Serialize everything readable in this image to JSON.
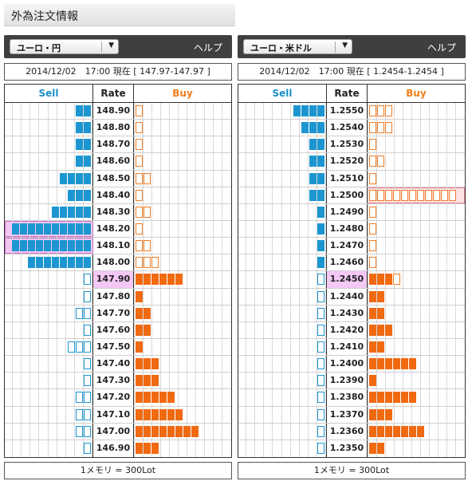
{
  "page_title": "外為注文情報",
  "colors": {
    "sell": "#1c96d1",
    "buy": "#f06a12",
    "current_rate": "#f4c8f5"
  },
  "panels": [
    {
      "pair": "ユーロ・円",
      "help": "ヘルプ",
      "status": "2014/12/02　17:00 現在 [ 147.97-147.97 ]",
      "headers": {
        "sell": "Sell",
        "rate": "Rate",
        "buy": "Buy"
      },
      "footer": "1メモリ = 300Lot",
      "rows": [
        {
          "rate": "148.90",
          "sell": 2,
          "sell_partial": false,
          "buy": 0,
          "buy_partial": true
        },
        {
          "rate": "148.80",
          "sell": 2,
          "sell_partial": false,
          "buy": 0,
          "buy_partial": true
        },
        {
          "rate": "148.70",
          "sell": 2,
          "sell_partial": false,
          "buy": 0,
          "buy_partial": true
        },
        {
          "rate": "148.60",
          "sell": 2,
          "sell_partial": false,
          "buy": 0,
          "buy_partial": true
        },
        {
          "rate": "148.50",
          "sell": 4,
          "sell_partial": false,
          "buy": 0,
          "buy_partial": true,
          "buy_outline": 2
        },
        {
          "rate": "148.40",
          "sell": 3,
          "sell_partial": false,
          "buy": 0,
          "buy_partial": true
        },
        {
          "rate": "148.30",
          "sell": 5,
          "sell_partial": false,
          "buy": 0,
          "buy_partial": true,
          "buy_outline": 2
        },
        {
          "rate": "148.20",
          "sell": 10,
          "sell_partial": false,
          "buy": 0,
          "buy_partial": true,
          "sell_highlight": true
        },
        {
          "rate": "148.10",
          "sell": 10,
          "sell_partial": false,
          "buy": 0,
          "buy_partial": true,
          "buy_outline": 2,
          "sell_highlight": true
        },
        {
          "rate": "148.00",
          "sell": 8,
          "sell_partial": false,
          "buy": 0,
          "buy_partial": true,
          "buy_outline": 3
        },
        {
          "rate": "147.90",
          "sell": 0,
          "sell_partial": true,
          "sell_extra": 1,
          "buy": 6,
          "buy_partial": false,
          "current": true
        },
        {
          "rate": "147.80",
          "sell": 0,
          "sell_partial": true,
          "buy": 1,
          "buy_partial": false
        },
        {
          "rate": "147.70",
          "sell": 0,
          "sell_partial": true,
          "sell_outline": 2,
          "buy": 2,
          "buy_partial": false
        },
        {
          "rate": "147.60",
          "sell": 0,
          "sell_partial": true,
          "buy": 2,
          "buy_partial": false
        },
        {
          "rate": "147.50",
          "sell": 0,
          "sell_partial": true,
          "sell_outline": 3,
          "buy": 1,
          "buy_partial": false
        },
        {
          "rate": "147.40",
          "sell": 0,
          "sell_partial": true,
          "buy": 3,
          "buy_partial": false
        },
        {
          "rate": "147.30",
          "sell": 0,
          "sell_partial": true,
          "buy": 3,
          "buy_partial": false
        },
        {
          "rate": "147.20",
          "sell": 0,
          "sell_partial": true,
          "sell_outline": 2,
          "buy": 5,
          "buy_partial": false
        },
        {
          "rate": "147.10",
          "sell": 0,
          "sell_partial": true,
          "sell_outline": 2,
          "buy": 6,
          "buy_partial": false
        },
        {
          "rate": "147.00",
          "sell": 0,
          "sell_partial": true,
          "sell_outline": 2,
          "buy": 8,
          "buy_partial": false
        },
        {
          "rate": "146.90",
          "sell": 0,
          "sell_partial": true,
          "buy": 3,
          "buy_partial": false
        }
      ]
    },
    {
      "pair": "ユーロ・米ドル",
      "help": "ヘルプ",
      "status": "2014/12/02　17:00 現在 [ 1.2454-1.2454 ]",
      "headers": {
        "sell": "Sell",
        "rate": "Rate",
        "buy": "Buy"
      },
      "footer": "1メモリ = 300Lot",
      "rows": [
        {
          "rate": "1.2550",
          "sell": 4,
          "sell_partial": false,
          "buy": 0,
          "buy_partial": true,
          "buy_outline": 3
        },
        {
          "rate": "1.2540",
          "sell": 3,
          "sell_partial": false,
          "buy": 0,
          "buy_partial": true,
          "buy_outline": 3
        },
        {
          "rate": "1.2530",
          "sell": 2,
          "sell_partial": false,
          "buy": 0,
          "buy_partial": true
        },
        {
          "rate": "1.2520",
          "sell": 2,
          "sell_partial": false,
          "buy": 0,
          "buy_partial": true,
          "buy_outline": 2
        },
        {
          "rate": "1.2510",
          "sell": 2,
          "sell_partial": false,
          "buy": 0,
          "buy_partial": true
        },
        {
          "rate": "1.2500",
          "sell": 2,
          "sell_partial": false,
          "buy": 0,
          "buy_partial": true,
          "buy_outline": 11,
          "buy_highlight": true
        },
        {
          "rate": "1.2490",
          "sell": 1,
          "sell_partial": false,
          "buy": 0,
          "buy_partial": true
        },
        {
          "rate": "1.2480",
          "sell": 1,
          "sell_partial": false,
          "buy": 0,
          "buy_partial": true
        },
        {
          "rate": "1.2470",
          "sell": 1,
          "sell_partial": false,
          "buy": 0,
          "buy_partial": true
        },
        {
          "rate": "1.2460",
          "sell": 1,
          "sell_partial": false,
          "buy": 0,
          "buy_partial": true
        },
        {
          "rate": "1.2450",
          "sell": 0,
          "sell_partial": true,
          "sell_extra": 1,
          "buy": 3,
          "buy_partial": true,
          "current": true
        },
        {
          "rate": "1.2440",
          "sell": 0,
          "sell_partial": true,
          "buy": 2,
          "buy_partial": false
        },
        {
          "rate": "1.2430",
          "sell": 0,
          "sell_partial": true,
          "buy": 2,
          "buy_partial": false
        },
        {
          "rate": "1.2420",
          "sell": 0,
          "sell_partial": true,
          "buy": 3,
          "buy_partial": false
        },
        {
          "rate": "1.2410",
          "sell": 0,
          "sell_partial": true,
          "buy": 2,
          "buy_partial": false
        },
        {
          "rate": "1.2400",
          "sell": 0,
          "sell_partial": true,
          "buy": 6,
          "buy_partial": false
        },
        {
          "rate": "1.2390",
          "sell": 0,
          "sell_partial": true,
          "buy": 1,
          "buy_partial": false
        },
        {
          "rate": "1.2380",
          "sell": 0,
          "sell_partial": true,
          "buy": 6,
          "buy_partial": false
        },
        {
          "rate": "1.2370",
          "sell": 0,
          "sell_partial": true,
          "buy": 3,
          "buy_partial": false
        },
        {
          "rate": "1.2360",
          "sell": 0,
          "sell_partial": true,
          "buy": 7,
          "buy_partial": false
        },
        {
          "rate": "1.2350",
          "sell": 0,
          "sell_partial": true,
          "buy": 2,
          "buy_partial": false
        }
      ]
    }
  ]
}
